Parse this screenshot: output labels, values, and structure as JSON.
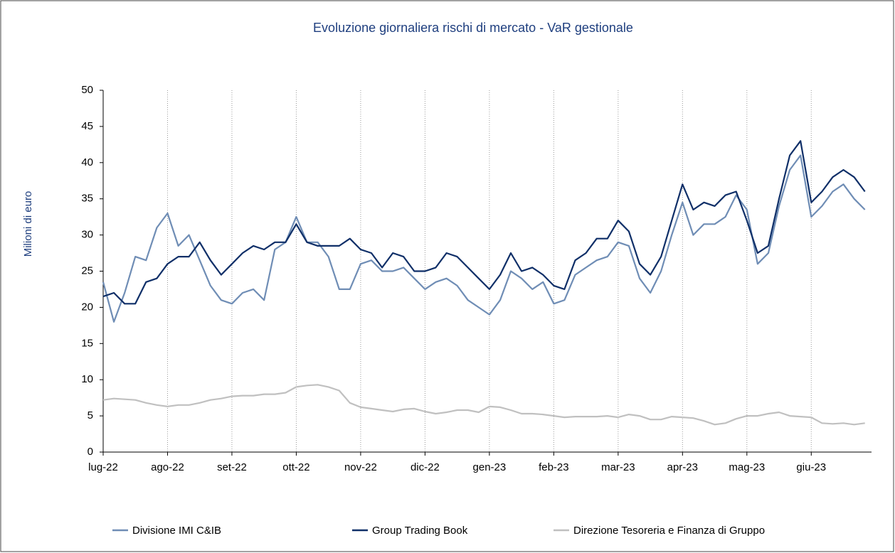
{
  "chart_data": {
    "type": "line",
    "title": "Evoluzione giornaliera rischi di mercato - VaR gestionale",
    "y_label": "Milioni di euro",
    "categories": [
      "lug-22",
      null,
      null,
      null,
      null,
      null,
      "ago-22",
      null,
      null,
      null,
      null,
      null,
      "set-22",
      null,
      null,
      null,
      null,
      null,
      "ott-22",
      null,
      null,
      null,
      null,
      null,
      "nov-22",
      null,
      null,
      null,
      null,
      null,
      "dic-22",
      null,
      null,
      null,
      null,
      null,
      "gen-23",
      null,
      null,
      null,
      null,
      null,
      "feb-23",
      null,
      null,
      null,
      null,
      null,
      "mar-23",
      null,
      null,
      null,
      null,
      null,
      "apr-23",
      null,
      null,
      null,
      null,
      null,
      "mag-23",
      null,
      null,
      null,
      null,
      null,
      "giu-23",
      null,
      null,
      null,
      null,
      null
    ],
    "series": [
      {
        "name": "Divisione IMI C&IB",
        "color": "#6f8db5",
        "values": [
          23.5,
          18,
          22,
          27,
          26.5,
          31,
          33,
          28.5,
          30,
          26.5,
          23,
          21,
          20.5,
          22,
          22.5,
          21,
          28,
          29,
          32.5,
          29,
          29,
          27,
          22.5,
          22.5,
          26,
          26.5,
          25,
          25,
          25.5,
          24,
          22.5,
          23.5,
          24,
          23,
          21,
          20,
          19,
          21,
          25,
          24,
          22.5,
          23.5,
          20.5,
          21,
          24.5,
          25.5,
          26.5,
          27,
          29,
          28.5,
          24,
          22,
          25,
          30,
          34.5,
          30,
          31.5,
          31.5,
          32.5,
          35.5,
          33.5,
          26,
          27.5,
          34,
          39,
          41,
          32.5,
          34,
          36,
          37,
          35,
          33.5
        ]
      },
      {
        "name": "Group Trading Book",
        "color": "#0f2f68",
        "values": [
          21.5,
          22,
          20.5,
          20.5,
          23.5,
          24,
          26,
          27,
          27,
          29,
          26.5,
          24.5,
          26,
          27.5,
          28.5,
          28,
          29,
          29,
          31.5,
          29,
          28.5,
          28.5,
          28.5,
          29.5,
          28,
          27.5,
          25.5,
          27.5,
          27,
          25,
          25,
          25.5,
          27.5,
          27,
          25.5,
          24,
          22.5,
          24.5,
          27.5,
          25,
          25.5,
          24.5,
          23,
          22.5,
          26.5,
          27.5,
          29.5,
          29.5,
          32,
          30.5,
          26,
          24.5,
          27,
          32,
          37,
          33.5,
          34.5,
          34,
          35.5,
          36,
          32,
          27.5,
          28.5,
          35,
          41,
          43,
          34.5,
          36,
          38,
          39,
          38,
          36
        ]
      },
      {
        "name": "Direzione Tesoreria e Finanza di Gruppo",
        "color": "#c0c0c0",
        "values": [
          7.2,
          7.4,
          7.3,
          7.2,
          6.8,
          6.5,
          6.3,
          6.5,
          6.5,
          6.8,
          7.2,
          7.4,
          7.7,
          7.8,
          7.8,
          8.0,
          8.0,
          8.2,
          9.0,
          9.2,
          9.3,
          9.0,
          8.5,
          6.8,
          6.2,
          6.0,
          5.8,
          5.6,
          5.9,
          6.0,
          5.6,
          5.3,
          5.5,
          5.8,
          5.8,
          5.5,
          6.3,
          6.2,
          5.8,
          5.3,
          5.3,
          5.2,
          5.0,
          4.8,
          4.9,
          4.9,
          4.9,
          5.0,
          4.8,
          5.2,
          5.0,
          4.5,
          4.5,
          4.9,
          4.8,
          4.7,
          4.3,
          3.8,
          4.0,
          4.6,
          5.0,
          5.0,
          5.3,
          5.5,
          5.0,
          4.9,
          4.8,
          4.0,
          3.9,
          4.0,
          3.8,
          4.0
        ]
      }
    ],
    "ylim": [
      0,
      50
    ],
    "yticks": [
      0,
      5,
      10,
      15,
      20,
      25,
      30,
      35,
      40,
      45,
      50
    ],
    "grid": true
  }
}
